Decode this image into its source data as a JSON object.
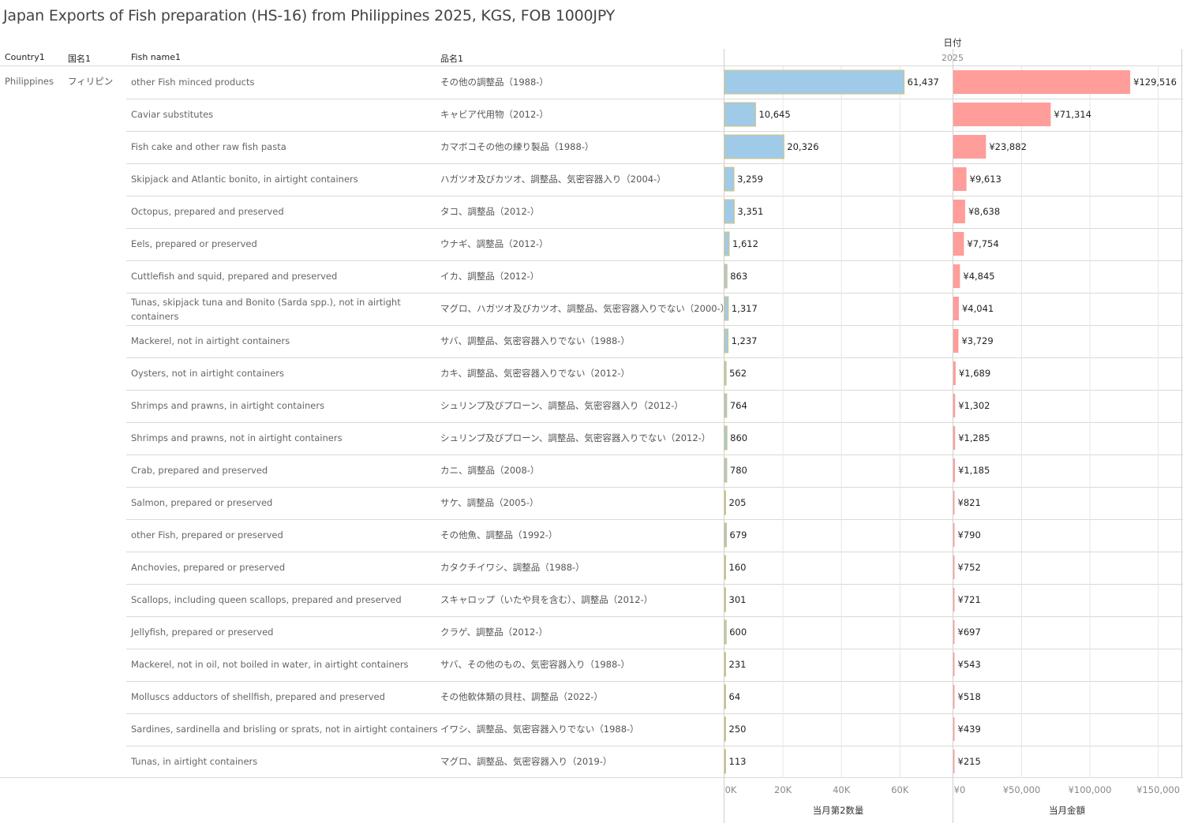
{
  "title": "Japan Exports of Fish preparation (HS-16) from Philippines 2025, KGS, FOB 1000JPY",
  "headers": {
    "country": "Country1",
    "country_jp": "国名1",
    "fish_name": "Fish name1",
    "fish_name_jp": "品名1",
    "date": "日付",
    "year": "2025"
  },
  "country": {
    "name": "Philippines",
    "name_jp": "フィリピン"
  },
  "colors": {
    "qty_bar": "#a0cbe8",
    "qty_border": "#d4c07a",
    "amt_bar": "#ff9d9a",
    "grid": "#e6e6e6",
    "divider": "#d9d9d9"
  },
  "chart_data": [
    {
      "type": "bar",
      "orientation": "horizontal",
      "title": "当月第2数量",
      "xlabel": "当月第2数量",
      "xlim": [
        0,
        78000
      ],
      "ticks": [
        {
          "value": 0,
          "label": "0K"
        },
        {
          "value": 20000,
          "label": "20K"
        },
        {
          "value": 40000,
          "label": "40K"
        },
        {
          "value": 60000,
          "label": "60K"
        }
      ],
      "categories": [
        "other Fish minced products",
        "Caviar substitutes",
        "Fish cake and other raw fish pasta",
        "Skipjack and Atlantic bonito, in airtight containers",
        "Octopus, prepared and preserved",
        "Eels, prepared or preserved",
        "Cuttlefish and squid, prepared and preserved",
        "Tunas, skipjack tuna and Bonito (Sarda spp.), not in airtight containers",
        "Mackerel, not in airtight containers",
        "Oysters, not in airtight containers",
        "Shrimps and prawns, in airtight containers",
        "Shrimps and prawns, not in airtight containers",
        "Crab, prepared and preserved",
        "Salmon, prepared or preserved",
        "other Fish, prepared or preserved",
        "Anchovies, prepared or preserved",
        "Scallops, including queen scallops, prepared and preserved",
        "Jellyfish, prepared or preserved",
        "Mackerel, not in oil, not boiled in water, in airtight containers",
        "Molluscs adductors of shellfish, prepared and preserved",
        "Sardines, sardinella and brisling or sprats, not in airtight containers",
        "Tunas, in airtight containers"
      ],
      "values": [
        61437,
        10645,
        20326,
        3259,
        3351,
        1612,
        863,
        1317,
        1237,
        562,
        764,
        860,
        780,
        205,
        679,
        160,
        301,
        600,
        231,
        64,
        250,
        113
      ],
      "labels": [
        "61,437",
        "10,645",
        "20,326",
        "3,259",
        "3,351",
        "1,612",
        "863",
        "1,317",
        "1,237",
        "562",
        "764",
        "860",
        "780",
        "205",
        "679",
        "160",
        "301",
        "600",
        "231",
        "64",
        "250",
        "113"
      ]
    },
    {
      "type": "bar",
      "orientation": "horizontal",
      "title": "当月金額",
      "xlabel": "当月金額",
      "xlim": [
        0,
        167000
      ],
      "ticks": [
        {
          "value": 0,
          "label": "¥0"
        },
        {
          "value": 50000,
          "label": "¥50,000"
        },
        {
          "value": 100000,
          "label": "¥100,000"
        },
        {
          "value": 150000,
          "label": "¥150,000"
        }
      ],
      "categories": [
        "other Fish minced products",
        "Caviar substitutes",
        "Fish cake and other raw fish pasta",
        "Skipjack and Atlantic bonito, in airtight containers",
        "Octopus, prepared and preserved",
        "Eels, prepared or preserved",
        "Cuttlefish and squid, prepared and preserved",
        "Tunas, skipjack tuna and Bonito (Sarda spp.), not in airtight containers",
        "Mackerel, not in airtight containers",
        "Oysters, not in airtight containers",
        "Shrimps and prawns, in airtight containers",
        "Shrimps and prawns, not in airtight containers",
        "Crab, prepared and preserved",
        "Salmon, prepared or preserved",
        "other Fish, prepared or preserved",
        "Anchovies, prepared or preserved",
        "Scallops, including queen scallops, prepared and preserved",
        "Jellyfish, prepared or preserved",
        "Mackerel, not in oil, not boiled in water, in airtight containers",
        "Molluscs adductors of shellfish, prepared and preserved",
        "Sardines, sardinella and brisling or sprats, not in airtight containers",
        "Tunas, in airtight containers"
      ],
      "values": [
        129516,
        71314,
        23882,
        9613,
        8638,
        7754,
        4845,
        4041,
        3729,
        1689,
        1302,
        1285,
        1185,
        821,
        790,
        752,
        721,
        697,
        543,
        518,
        439,
        215
      ],
      "labels": [
        "¥129,516",
        "¥71,314",
        "¥23,882",
        "¥9,613",
        "¥8,638",
        "¥7,754",
        "¥4,845",
        "¥4,041",
        "¥3,729",
        "¥1,689",
        "¥1,302",
        "¥1,285",
        "¥1,185",
        "¥821",
        "¥790",
        "¥752",
        "¥721",
        "¥697",
        "¥543",
        "¥518",
        "¥439",
        "¥215"
      ]
    }
  ],
  "rows": [
    {
      "en": "other Fish minced products",
      "jp": "その他の調整品（1988-）"
    },
    {
      "en": "Caviar substitutes",
      "jp": "キャビア代用物（2012-）"
    },
    {
      "en": "Fish cake and other raw fish pasta",
      "jp": "カマボコその他の練り製品（1988-）"
    },
    {
      "en": "Skipjack and Atlantic bonito, in airtight containers",
      "jp": "ハガツオ及びカツオ、調整品、気密容器入り（2004-）"
    },
    {
      "en": "Octopus, prepared and preserved",
      "jp": "タコ、調整品（2012-）"
    },
    {
      "en": "Eels, prepared or preserved",
      "jp": "ウナギ、調整品（2012-）"
    },
    {
      "en": "Cuttlefish and squid, prepared and preserved",
      "jp": "イカ、調整品（2012-）"
    },
    {
      "en": "Tunas, skipjack tuna and Bonito (Sarda spp.), not in airtight containers",
      "jp": "マグロ、ハガツオ及びカツオ、調整品、気密容器入りでない（2000-）"
    },
    {
      "en": "Mackerel, not in airtight containers",
      "jp": "サバ、調整品、気密容器入りでない（1988-）"
    },
    {
      "en": "Oysters, not in airtight containers",
      "jp": "カキ、調整品、気密容器入りでない（2012-）"
    },
    {
      "en": "Shrimps and prawns, in airtight containers",
      "jp": "シュリンプ及びプローン、調整品、気密容器入り（2012-）"
    },
    {
      "en": "Shrimps and prawns, not in airtight containers",
      "jp": "シュリンプ及びプローン、調整品、気密容器入りでない（2012-）"
    },
    {
      "en": "Crab, prepared and preserved",
      "jp": "カニ、調整品（2008-）"
    },
    {
      "en": "Salmon, prepared or preserved",
      "jp": "サケ、調整品（2005-）"
    },
    {
      "en": "other Fish, prepared or preserved",
      "jp": "その他魚、調整品（1992-）"
    },
    {
      "en": "Anchovies, prepared or preserved",
      "jp": "カタクチイワシ、調整品（1988-）"
    },
    {
      "en": "Scallops, including queen scallops, prepared and preserved",
      "jp": "スキャロップ（いたや貝を含む）、調整品（2012-）"
    },
    {
      "en": "Jellyfish, prepared or preserved",
      "jp": "クラゲ、調整品（2012-）"
    },
    {
      "en": "Mackerel, not in oil, not boiled in water, in airtight containers",
      "jp": "サバ、その他のもの、気密容器入り（1988-）"
    },
    {
      "en": "Molluscs adductors of shellfish, prepared and preserved",
      "jp": "その他軟体類の貝柱、調整品（2022-）"
    },
    {
      "en": "Sardines, sardinella and brisling or sprats, not in airtight containers",
      "jp": "イワシ、調整品、気密容器入りでない（1988-）"
    },
    {
      "en": "Tunas, in airtight containers",
      "jp": "マグロ、調整品、気密容器入り（2019-）"
    }
  ]
}
